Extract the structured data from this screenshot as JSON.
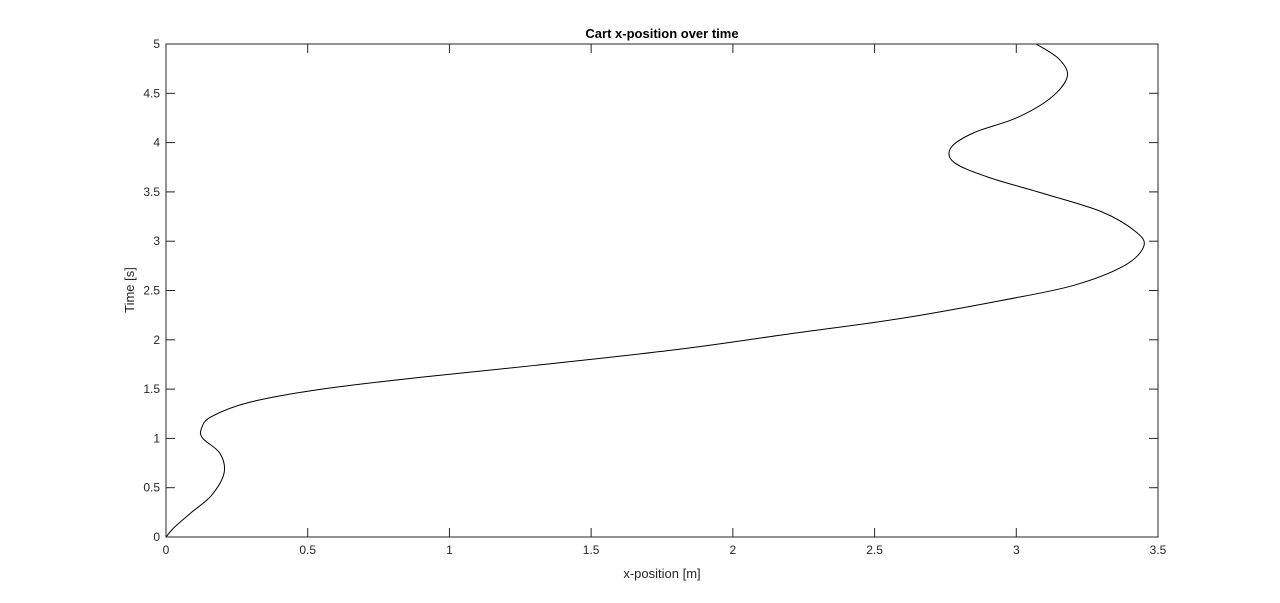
{
  "chart_data": {
    "type": "line",
    "title": "Cart x-position over time",
    "xlabel": "x-position [m]",
    "ylabel": "Time [s]",
    "xlim": [
      0,
      3.5
    ],
    "ylim": [
      0,
      5
    ],
    "xticks": [
      "0",
      "0.5",
      "1",
      "1.5",
      "2",
      "2.5",
      "3",
      "3.5"
    ],
    "yticks": [
      "0",
      "0.5",
      "1",
      "1.5",
      "2",
      "2.5",
      "3",
      "3.5",
      "4",
      "4.5",
      "5"
    ],
    "grid": false,
    "line_color": "#000000",
    "series": [
      {
        "x": [
          0.0,
          0.03,
          0.09,
          0.16,
          0.205,
          0.19,
          0.13,
          0.125,
          0.16,
          0.3,
          0.55,
          0.9,
          1.3,
          1.8,
          2.2,
          2.6,
          2.95,
          3.2,
          3.38,
          3.45,
          3.42,
          3.3,
          3.1,
          2.9,
          2.78,
          2.77,
          2.85,
          3.0,
          3.12,
          3.18,
          3.15,
          3.07
        ],
        "y": [
          0.0,
          0.1,
          0.25,
          0.42,
          0.65,
          0.85,
          1.0,
          1.1,
          1.22,
          1.37,
          1.5,
          1.62,
          1.74,
          1.9,
          2.06,
          2.22,
          2.4,
          2.55,
          2.75,
          2.95,
          3.1,
          3.3,
          3.48,
          3.65,
          3.8,
          3.95,
          4.1,
          4.25,
          4.45,
          4.67,
          4.85,
          5.0
        ]
      }
    ]
  }
}
